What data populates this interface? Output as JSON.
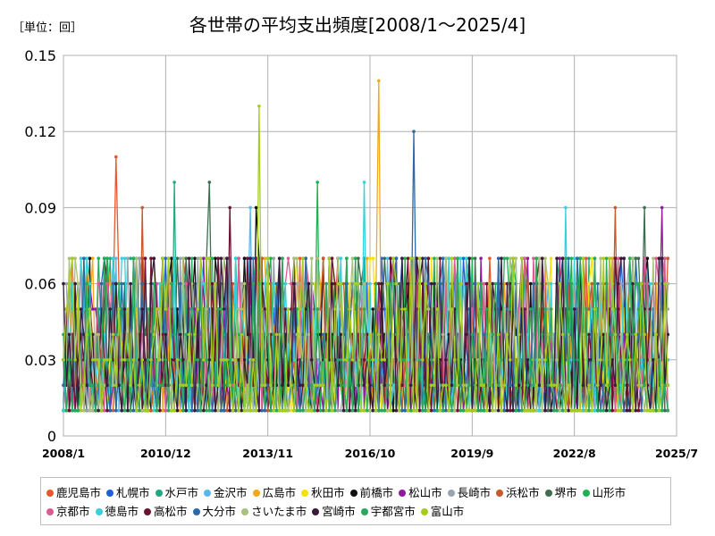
{
  "unit_label": "［単位：回］",
  "chart_data": {
    "type": "line",
    "title": "各世帯の平均支出頻度[2008/1～2025/4]",
    "xlabel": "",
    "ylabel": "",
    "x_range": [
      "2008/1",
      "2025/7"
    ],
    "ylim": [
      0,
      0.15
    ],
    "yticks": [
      "0",
      "0.03",
      "0.06",
      "0.09",
      "0.12",
      "0.15"
    ],
    "xticks": [
      "2008/1",
      "2010/12",
      "2013/11",
      "2016/10",
      "2019/9",
      "2022/8",
      "2025/7"
    ],
    "grid": true,
    "legend_position": "bottom",
    "series": [
      {
        "name": "鹿児島市",
        "color": "#e8572a",
        "peaks": [
          [
            "2009/7",
            0.11
          ]
        ]
      },
      {
        "name": "札幌市",
        "color": "#1f5fd6",
        "peaks": []
      },
      {
        "name": "水戸市",
        "color": "#1fa882",
        "peaks": [
          [
            "2011/3",
            0.1
          ]
        ]
      },
      {
        "name": "金沢市",
        "color": "#5ab8e8",
        "peaks": [
          [
            "2013/5",
            0.09
          ]
        ]
      },
      {
        "name": "広島市",
        "color": "#f2a81d",
        "peaks": [
          [
            "2017/1",
            0.14
          ]
        ]
      },
      {
        "name": "秋田市",
        "color": "#f5e10f",
        "peaks": []
      },
      {
        "name": "前橋市",
        "color": "#111111",
        "peaks": [
          [
            "2013/7",
            0.09
          ]
        ]
      },
      {
        "name": "松山市",
        "color": "#8e1a9e",
        "peaks": [
          [
            "2025/2",
            0.09
          ]
        ]
      },
      {
        "name": "長崎市",
        "color": "#9aa4b0",
        "peaks": []
      },
      {
        "name": "浜松市",
        "color": "#c65a2c",
        "peaks": [
          [
            "2010/4",
            0.09
          ],
          [
            "2023/10",
            0.09
          ]
        ]
      },
      {
        "name": "堺市",
        "color": "#3e6d4f",
        "peaks": [
          [
            "2012/3",
            0.1
          ],
          [
            "2024/8",
            0.09
          ]
        ]
      },
      {
        "name": "山形市",
        "color": "#21b050",
        "peaks": [
          [
            "2015/4",
            0.1
          ]
        ]
      },
      {
        "name": "京都市",
        "color": "#de5a93",
        "peaks": []
      },
      {
        "name": "徳島市",
        "color": "#35d2dc",
        "peaks": [
          [
            "2016/8",
            0.1
          ],
          [
            "2022/5",
            0.09
          ]
        ]
      },
      {
        "name": "高松市",
        "color": "#6e1030",
        "peaks": [
          [
            "2012/10",
            0.09
          ]
        ]
      },
      {
        "name": "大分市",
        "color": "#2b6aa8",
        "peaks": [
          [
            "2018/1",
            0.12
          ]
        ]
      },
      {
        "name": "さいたま市",
        "color": "#a8c27a",
        "peaks": []
      },
      {
        "name": "宮崎市",
        "color": "#3a1a3a",
        "peaks": []
      },
      {
        "name": "宇都宮市",
        "color": "#2aa85c",
        "peaks": []
      },
      {
        "name": "富山市",
        "color": "#a6cc22",
        "peaks": [
          [
            "2013/8",
            0.13
          ]
        ]
      }
    ]
  }
}
